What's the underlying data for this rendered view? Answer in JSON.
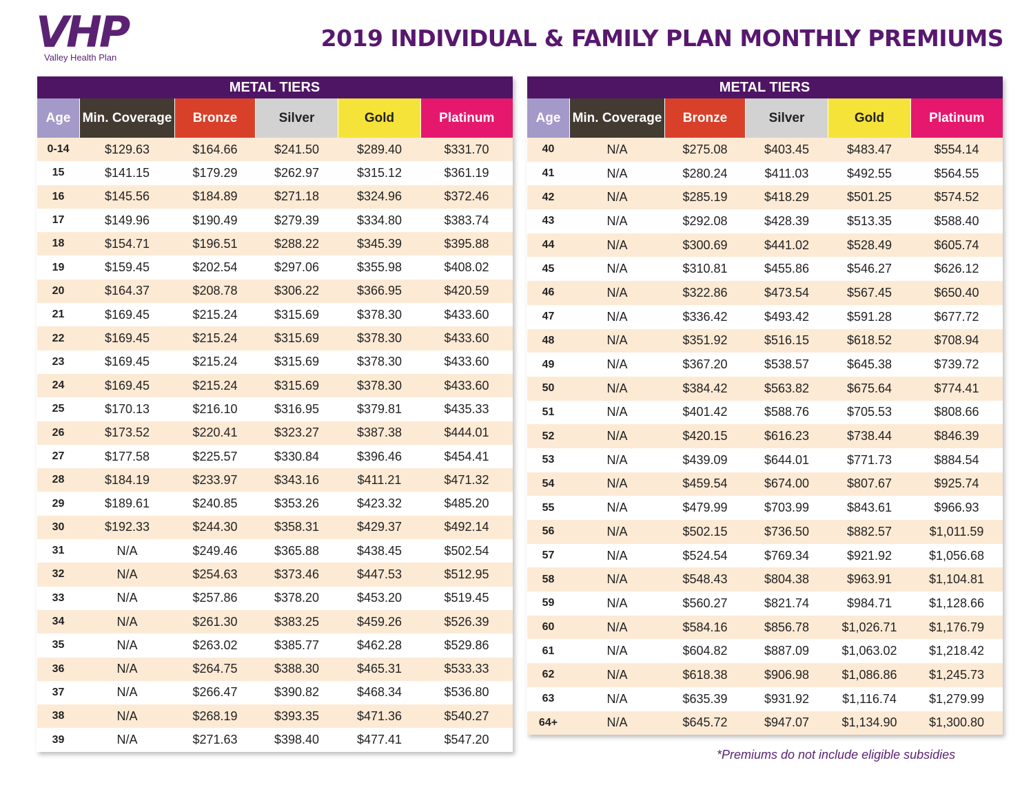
{
  "header": {
    "logo": "VHP",
    "logo_subtitle": "Valley Health Plan",
    "title": "2019 INDIVIDUAL & FAMILY PLAN MONTHLY PREMIUMS"
  },
  "tables": [
    {
      "group_header": "METAL TIERS",
      "columns": [
        "Age",
        "Min. Coverage",
        "Bronze",
        "Silver",
        "Gold",
        "Platinum"
      ],
      "rows": [
        [
          "0-14",
          "$129.63",
          "$164.66",
          "$241.50",
          "$289.40",
          "$331.70"
        ],
        [
          "15",
          "$141.15",
          "$179.29",
          "$262.97",
          "$315.12",
          "$361.19"
        ],
        [
          "16",
          "$145.56",
          "$184.89",
          "$271.18",
          "$324.96",
          "$372.46"
        ],
        [
          "17",
          "$149.96",
          "$190.49",
          "$279.39",
          "$334.80",
          "$383.74"
        ],
        [
          "18",
          "$154.71",
          "$196.51",
          "$288.22",
          "$345.39",
          "$395.88"
        ],
        [
          "19",
          "$159.45",
          "$202.54",
          "$297.06",
          "$355.98",
          "$408.02"
        ],
        [
          "20",
          "$164.37",
          "$208.78",
          "$306.22",
          "$366.95",
          "$420.59"
        ],
        [
          "21",
          "$169.45",
          "$215.24",
          "$315.69",
          "$378.30",
          "$433.60"
        ],
        [
          "22",
          "$169.45",
          "$215.24",
          "$315.69",
          "$378.30",
          "$433.60"
        ],
        [
          "23",
          "$169.45",
          "$215.24",
          "$315.69",
          "$378.30",
          "$433.60"
        ],
        [
          "24",
          "$169.45",
          "$215.24",
          "$315.69",
          "$378.30",
          "$433.60"
        ],
        [
          "25",
          "$170.13",
          "$216.10",
          "$316.95",
          "$379.81",
          "$435.33"
        ],
        [
          "26",
          "$173.52",
          "$220.41",
          "$323.27",
          "$387.38",
          "$444.01"
        ],
        [
          "27",
          "$177.58",
          "$225.57",
          "$330.84",
          "$396.46",
          "$454.41"
        ],
        [
          "28",
          "$184.19",
          "$233.97",
          "$343.16",
          "$411.21",
          "$471.32"
        ],
        [
          "29",
          "$189.61",
          "$240.85",
          "$353.26",
          "$423.32",
          "$485.20"
        ],
        [
          "30",
          "$192.33",
          "$244.30",
          "$358.31",
          "$429.37",
          "$492.14"
        ],
        [
          "31",
          "N/A",
          "$249.46",
          "$365.88",
          "$438.45",
          "$502.54"
        ],
        [
          "32",
          "N/A",
          "$254.63",
          "$373.46",
          "$447.53",
          "$512.95"
        ],
        [
          "33",
          "N/A",
          "$257.86",
          "$378.20",
          "$453.20",
          "$519.45"
        ],
        [
          "34",
          "N/A",
          "$261.30",
          "$383.25",
          "$459.26",
          "$526.39"
        ],
        [
          "35",
          "N/A",
          "$263.02",
          "$385.77",
          "$462.28",
          "$529.86"
        ],
        [
          "36",
          "N/A",
          "$264.75",
          "$388.30",
          "$465.31",
          "$533.33"
        ],
        [
          "37",
          "N/A",
          "$266.47",
          "$390.82",
          "$468.34",
          "$536.80"
        ],
        [
          "38",
          "N/A",
          "$268.19",
          "$393.35",
          "$471.36",
          "$540.27"
        ],
        [
          "39",
          "N/A",
          "$271.63",
          "$398.40",
          "$477.41",
          "$547.20"
        ]
      ]
    },
    {
      "group_header": "METAL TIERS",
      "columns": [
        "Age",
        "Min. Coverage",
        "Bronze",
        "Silver",
        "Gold",
        "Platinum"
      ],
      "rows": [
        [
          "40",
          "N/A",
          "$275.08",
          "$403.45",
          "$483.47",
          "$554.14"
        ],
        [
          "41",
          "N/A",
          "$280.24",
          "$411.03",
          "$492.55",
          "$564.55"
        ],
        [
          "42",
          "N/A",
          "$285.19",
          "$418.29",
          "$501.25",
          "$574.52"
        ],
        [
          "43",
          "N/A",
          "$292.08",
          "$428.39",
          "$513.35",
          "$588.40"
        ],
        [
          "44",
          "N/A",
          "$300.69",
          "$441.02",
          "$528.49",
          "$605.74"
        ],
        [
          "45",
          "N/A",
          "$310.81",
          "$455.86",
          "$546.27",
          "$626.12"
        ],
        [
          "46",
          "N/A",
          "$322.86",
          "$473.54",
          "$567.45",
          "$650.40"
        ],
        [
          "47",
          "N/A",
          "$336.42",
          "$493.42",
          "$591.28",
          "$677.72"
        ],
        [
          "48",
          "N/A",
          "$351.92",
          "$516.15",
          "$618.52",
          "$708.94"
        ],
        [
          "49",
          "N/A",
          "$367.20",
          "$538.57",
          "$645.38",
          "$739.72"
        ],
        [
          "50",
          "N/A",
          "$384.42",
          "$563.82",
          "$675.64",
          "$774.41"
        ],
        [
          "51",
          "N/A",
          "$401.42",
          "$588.76",
          "$705.53",
          "$808.66"
        ],
        [
          "52",
          "N/A",
          "$420.15",
          "$616.23",
          "$738.44",
          "$846.39"
        ],
        [
          "53",
          "N/A",
          "$439.09",
          "$644.01",
          "$771.73",
          "$884.54"
        ],
        [
          "54",
          "N/A",
          "$459.54",
          "$674.00",
          "$807.67",
          "$925.74"
        ],
        [
          "55",
          "N/A",
          "$479.99",
          "$703.99",
          "$843.61",
          "$966.93"
        ],
        [
          "56",
          "N/A",
          "$502.15",
          "$736.50",
          "$882.57",
          "$1,011.59"
        ],
        [
          "57",
          "N/A",
          "$524.54",
          "$769.34",
          "$921.92",
          "$1,056.68"
        ],
        [
          "58",
          "N/A",
          "$548.43",
          "$804.38",
          "$963.91",
          "$1,104.81"
        ],
        [
          "59",
          "N/A",
          "$560.27",
          "$821.74",
          "$984.71",
          "$1,128.66"
        ],
        [
          "60",
          "N/A",
          "$584.16",
          "$856.78",
          "$1,026.71",
          "$1,176.79"
        ],
        [
          "61",
          "N/A",
          "$604.82",
          "$887.09",
          "$1,063.02",
          "$1,218.42"
        ],
        [
          "62",
          "N/A",
          "$618.38",
          "$906.98",
          "$1,086.86",
          "$1,245.73"
        ],
        [
          "63",
          "N/A",
          "$635.39",
          "$931.92",
          "$1,116.74",
          "$1,279.99"
        ],
        [
          "64+",
          "N/A",
          "$645.72",
          "$947.07",
          "$1,134.90",
          "$1,300.80"
        ]
      ]
    }
  ],
  "footnote": "*Premiums do not include eligible subsidies"
}
